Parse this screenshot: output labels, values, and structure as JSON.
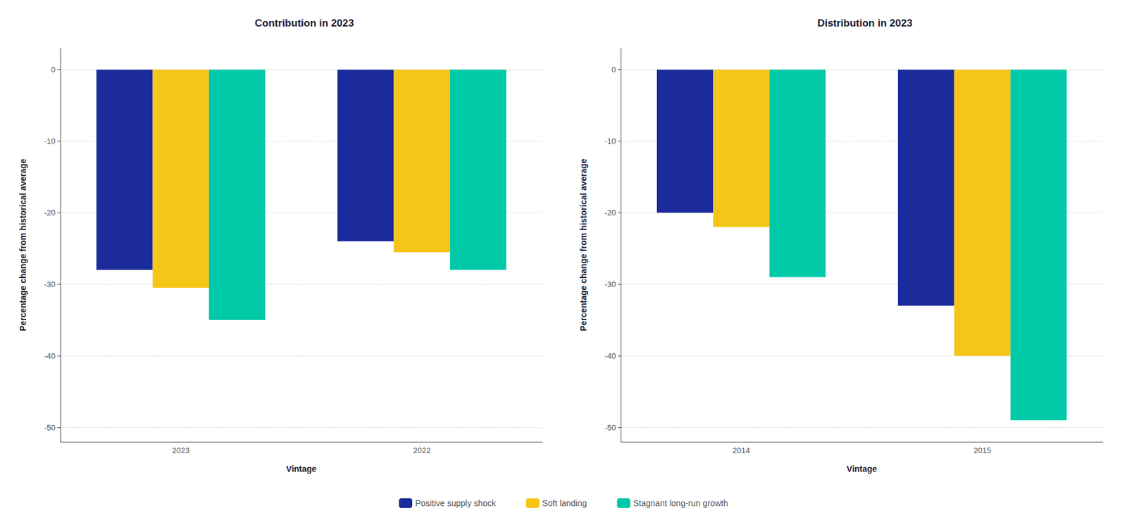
{
  "chart_data": [
    {
      "type": "bar",
      "title": "Contribution in 2023",
      "xlabel": "Vintage",
      "ylabel": "Percentage change from historical average",
      "categories": [
        "2023",
        "2022"
      ],
      "series": [
        {
          "name": "Positive supply shock",
          "color": "#1B2B9B",
          "values": [
            -28,
            -24
          ]
        },
        {
          "name": "Soft landing",
          "color": "#F5C518",
          "values": [
            -30.5,
            -25.5
          ]
        },
        {
          "name": "Stagnant long-run growth",
          "color": "#00C9A7",
          "values": [
            -35,
            -28
          ]
        }
      ],
      "ylim": [
        -52,
        3
      ],
      "yticks": [
        0,
        -10,
        -20,
        -30,
        -40,
        -50
      ],
      "grid": true,
      "legend": "bottom"
    },
    {
      "type": "bar",
      "title": "Distribution in 2023",
      "xlabel": "Vintage",
      "ylabel": "Percentage change from historical average",
      "categories": [
        "2014",
        "2015"
      ],
      "series": [
        {
          "name": "Positive supply shock",
          "color": "#1B2B9B",
          "values": [
            -20,
            -33
          ]
        },
        {
          "name": "Soft landing",
          "color": "#F5C518",
          "values": [
            -22,
            -40
          ]
        },
        {
          "name": "Stagnant long-run growth",
          "color": "#00C9A7",
          "values": [
            -29,
            -49
          ]
        }
      ],
      "ylim": [
        -52,
        3
      ],
      "yticks": [
        0,
        -10,
        -20,
        -30,
        -40,
        -50
      ],
      "grid": true,
      "legend": "bottom"
    }
  ]
}
